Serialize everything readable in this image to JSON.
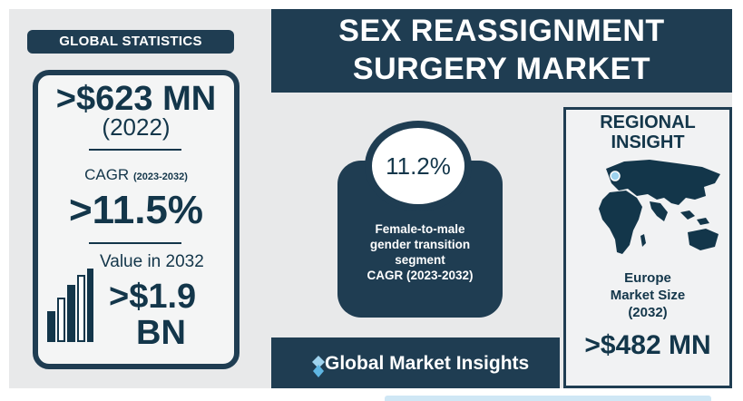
{
  "left_panel": {
    "badge": "GLOBAL STATISTICS",
    "market_value": ">$623 MN",
    "market_year": "(2022)",
    "cagr_label": "CAGR",
    "cagr_period": "(2023-2032)",
    "cagr_value": ">11.5%",
    "value_2032_label": "Value in 2032",
    "value_2032_line1": ">$1.9",
    "value_2032_line2": "BN"
  },
  "title": {
    "line1": "SEX REASSIGNMENT",
    "line2": "SURGERY MARKET"
  },
  "segment": {
    "cagr": "11.2%",
    "line1": "Female-to-male",
    "line2": "gender transition",
    "line3": "segment",
    "line4": "CAGR (2023-2032)"
  },
  "regional": {
    "title_line1": "REGIONAL",
    "title_line2": "INSIGHT",
    "label_line1": "Europe",
    "label_line2": "Market Size",
    "label_line3": "(2032)",
    "value": ">$482 MN"
  },
  "brand": {
    "name": "Global Market Insights"
  },
  "colors": {
    "navy": "#1f3d52",
    "panel_bg": "#e8e9ea",
    "text": "#13364a"
  }
}
